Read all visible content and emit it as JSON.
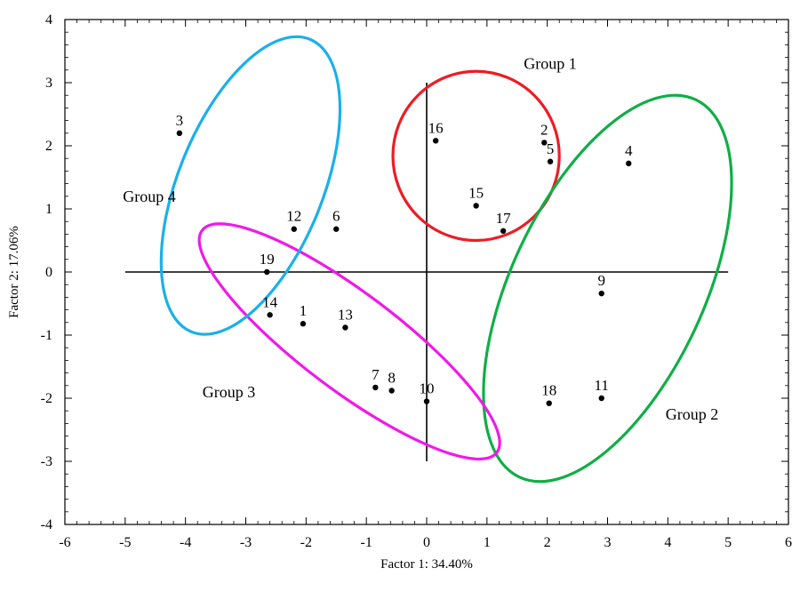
{
  "chart_data": {
    "type": "scatter",
    "xlabel": "Factor 1: 34.40%",
    "ylabel": "Factor 2: 17.06%",
    "xlim": [
      -6,
      6
    ],
    "ylim": [
      -4,
      4
    ],
    "x_ticks": [
      "-6",
      "-5",
      "-4",
      "-3",
      "-2",
      "-1",
      "0",
      "1",
      "2",
      "3",
      "4",
      "5",
      "6"
    ],
    "y_ticks": [
      "4",
      "3",
      "2",
      "1",
      "0",
      "-1",
      "-2",
      "-3",
      "-4"
    ],
    "grid": false,
    "reference_lines": {
      "horizontal": {
        "y": 0,
        "x_from": -5,
        "x_to": 5
      },
      "vertical": {
        "x": 0,
        "y_from": -3,
        "y_to": 3
      }
    },
    "points": [
      {
        "label": "1",
        "x": -2.05,
        "y": -0.82
      },
      {
        "label": "2",
        "x": 1.95,
        "y": 2.05
      },
      {
        "label": "3",
        "x": -4.1,
        "y": 2.2
      },
      {
        "label": "4",
        "x": 3.35,
        "y": 1.72
      },
      {
        "label": "5",
        "x": 2.05,
        "y": 1.75
      },
      {
        "label": "6",
        "x": -1.5,
        "y": 0.68
      },
      {
        "label": "7",
        "x": -0.85,
        "y": -1.83
      },
      {
        "label": "8",
        "x": -0.58,
        "y": -1.88
      },
      {
        "label": "9",
        "x": 2.9,
        "y": -0.34
      },
      {
        "label": "10",
        "x": 0.0,
        "y": -2.05
      },
      {
        "label": "11",
        "x": 2.9,
        "y": -2.0
      },
      {
        "label": "12",
        "x": -2.2,
        "y": 0.68
      },
      {
        "label": "13",
        "x": -1.35,
        "y": -0.88
      },
      {
        "label": "14",
        "x": -2.6,
        "y": -0.68
      },
      {
        "label": "15",
        "x": 0.82,
        "y": 1.05
      },
      {
        "label": "16",
        "x": 0.15,
        "y": 2.08
      },
      {
        "label": "17",
        "x": 1.27,
        "y": 0.65
      },
      {
        "label": "18",
        "x": 2.03,
        "y": -2.08
      },
      {
        "label": "19",
        "x": -2.65,
        "y": 0.0
      }
    ],
    "groups": [
      {
        "name": "Group 1",
        "color": "#ee1c24",
        "center": [
          0.82,
          1.84
        ],
        "rx": 1.38,
        "ry": 1.34,
        "rotation": 0
      },
      {
        "name": "Group 2",
        "color": "#0fae47",
        "center": [
          3.0,
          -0.26
        ],
        "rx": 1.6,
        "ry": 3.3,
        "rotation": 25
      },
      {
        "name": "Group 3",
        "color": "#f019e8",
        "center": [
          -1.28,
          -1.1
        ],
        "rx": 3.06,
        "ry": 0.77,
        "rotation": 37
      },
      {
        "name": "Group 4",
        "color": "#1ab0ea",
        "center": [
          -2.92,
          1.37
        ],
        "rx": 1.2,
        "ry": 2.5,
        "rotation": 22
      }
    ],
    "group_labels": [
      {
        "text": "Group 1",
        "x": 2.05,
        "y": 3.3
      },
      {
        "text": "Group 2",
        "x": 4.4,
        "y": -2.25
      },
      {
        "text": "Group 3",
        "x": -3.28,
        "y": -1.9
      },
      {
        "text": "Group 4",
        "x": -4.6,
        "y": 1.2
      }
    ]
  }
}
